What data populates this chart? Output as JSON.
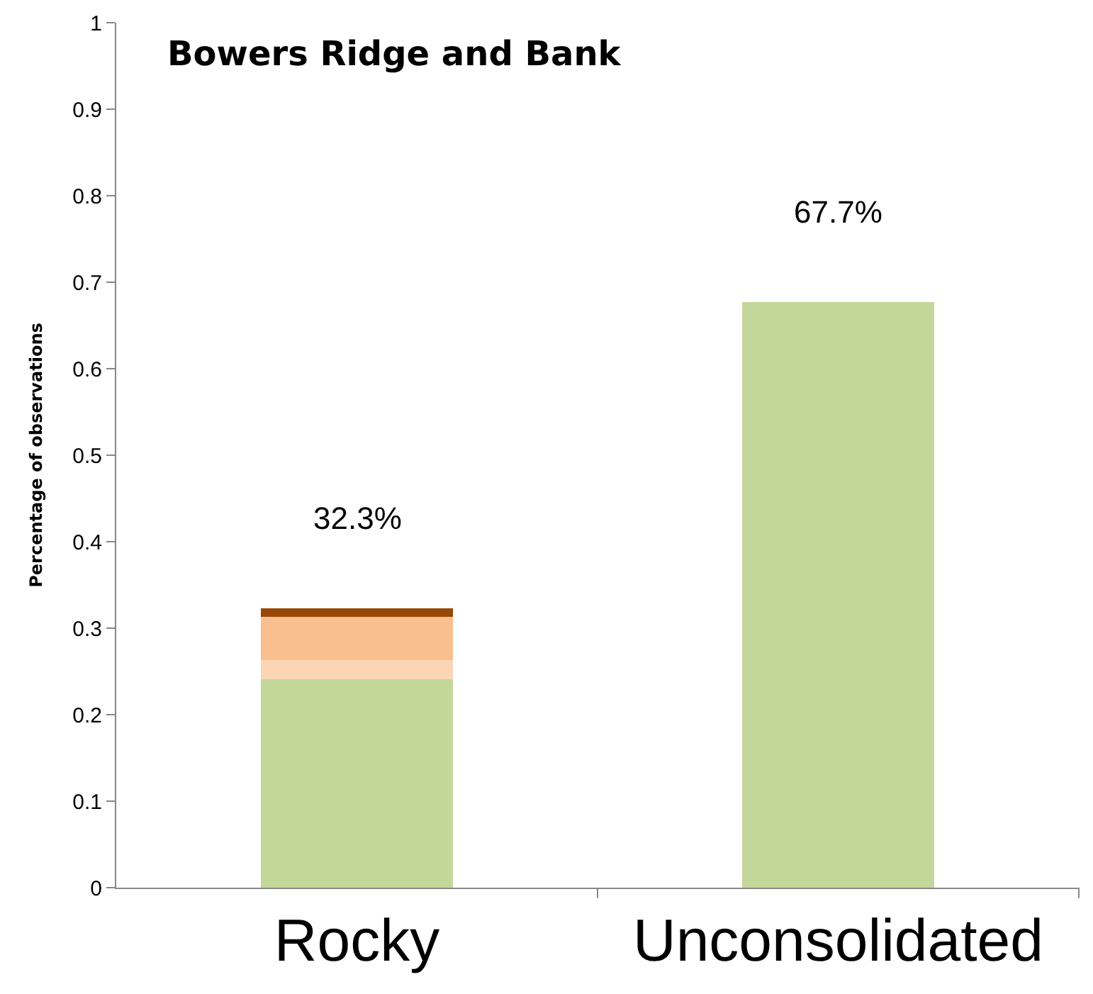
{
  "chart_data": {
    "type": "bar",
    "title": "Bowers Ridge and Bank",
    "ylabel": "Percentage of observations",
    "categories": [
      "Rocky",
      "Unconsolidated"
    ],
    "stacked": true,
    "series": [
      {
        "color": "#c4d79b",
        "values": [
          0.241,
          0.677
        ]
      },
      {
        "color": "#fcd5b4",
        "values": [
          0.022,
          null
        ]
      },
      {
        "color": "#fabf8f",
        "values": [
          0.05,
          null
        ]
      },
      {
        "color": "#974706",
        "values": [
          0.01,
          null
        ]
      }
    ],
    "totals": [
      "32.3%",
      "67.7%"
    ],
    "ylim": [
      0,
      1
    ],
    "yticks": [
      0,
      0.1,
      0.2,
      0.3,
      0.4,
      0.5,
      0.6,
      0.7,
      0.8,
      0.9,
      1
    ],
    "grid": false
  }
}
